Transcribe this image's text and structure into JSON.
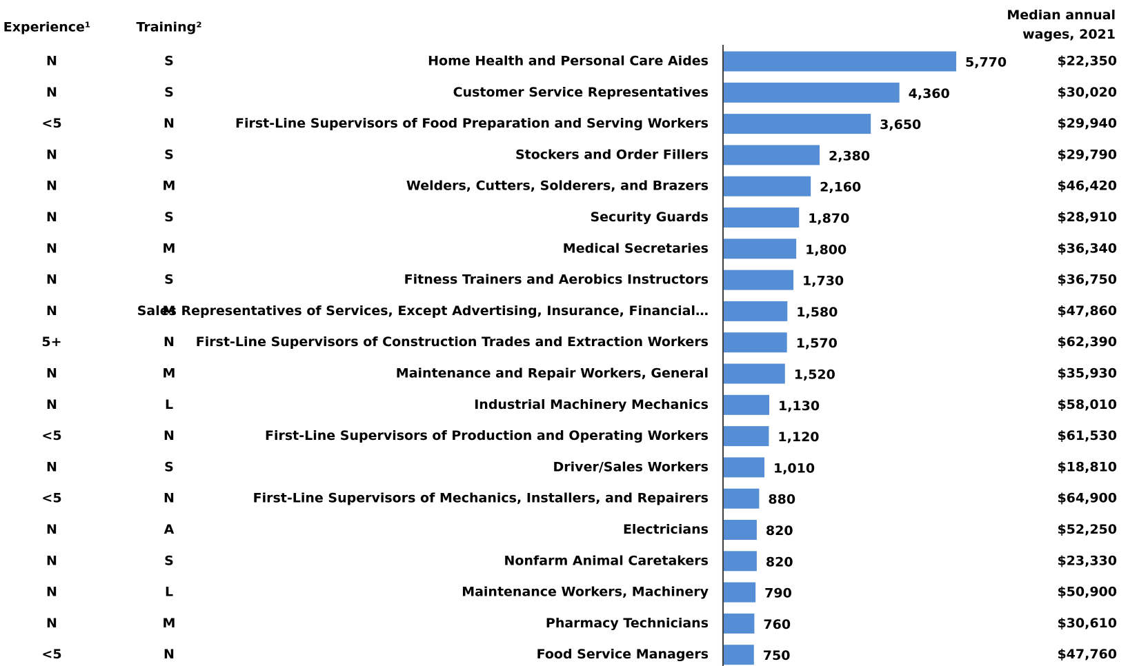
{
  "chart_data": {
    "type": "bar",
    "experience_header": "Experience¹",
    "training_header": "Training²",
    "wages_header": "Median annual wages, 2021",
    "color": "#558ed5",
    "categories": [
      "Home Health and Personal Care Aides",
      "Customer Service Representatives",
      "First-Line Supervisors of Food Preparation and Serving Workers",
      "Stockers and Order Fillers",
      "Welders, Cutters, Solderers, and Brazers",
      "Security Guards",
      "Medical Secretaries",
      "Fitness Trainers and Aerobics Instructors",
      "Sales Representatives of Services, Except Advertising, Insurance, Financial…",
      "First-Line Supervisors of Construction Trades and Extraction Workers",
      "Maintenance and Repair Workers, General",
      "Industrial Machinery Mechanics",
      "First-Line Supervisors of Production and Operating Workers",
      "Driver/Sales Workers",
      "First-Line Supervisors of Mechanics, Installers, and Repairers",
      "Electricians",
      "Nonfarm Animal Caretakers",
      "Maintenance Workers, Machinery",
      "Pharmacy Technicians",
      "Food Service Managers"
    ],
    "values": [
      5770,
      4360,
      3650,
      2380,
      2160,
      1870,
      1800,
      1730,
      1580,
      1570,
      1520,
      1130,
      1120,
      1010,
      880,
      820,
      820,
      790,
      760,
      750
    ],
    "value_labels": [
      "5,770",
      "4,360",
      "3,650",
      "2,380",
      "2,160",
      "1,870",
      "1,800",
      "1,730",
      "1,580",
      "1,570",
      "1,520",
      "1,130",
      "1,120",
      "1,010",
      "880",
      "820",
      "820",
      "790",
      "760",
      "750"
    ],
    "experience": [
      "N",
      "N",
      "<5",
      "N",
      "N",
      "N",
      "N",
      "N",
      "N",
      "5+",
      "N",
      "N",
      "<5",
      "N",
      "<5",
      "N",
      "N",
      "N",
      "N",
      "<5"
    ],
    "training": [
      "S",
      "S",
      "N",
      "S",
      "M",
      "S",
      "M",
      "S",
      "M",
      "N",
      "M",
      "L",
      "N",
      "S",
      "N",
      "A",
      "S",
      "L",
      "M",
      "N"
    ],
    "wages": [
      "$22,350",
      "$30,020",
      "$29,940",
      "$29,790",
      "$46,420",
      "$28,910",
      "$36,340",
      "$36,750",
      "$47,860",
      "$62,390",
      "$35,930",
      "$58,010",
      "$61,530",
      "$18,810",
      "$64,900",
      "$52,250",
      "$23,330",
      "$50,900",
      "$30,610",
      "$47,760"
    ]
  }
}
